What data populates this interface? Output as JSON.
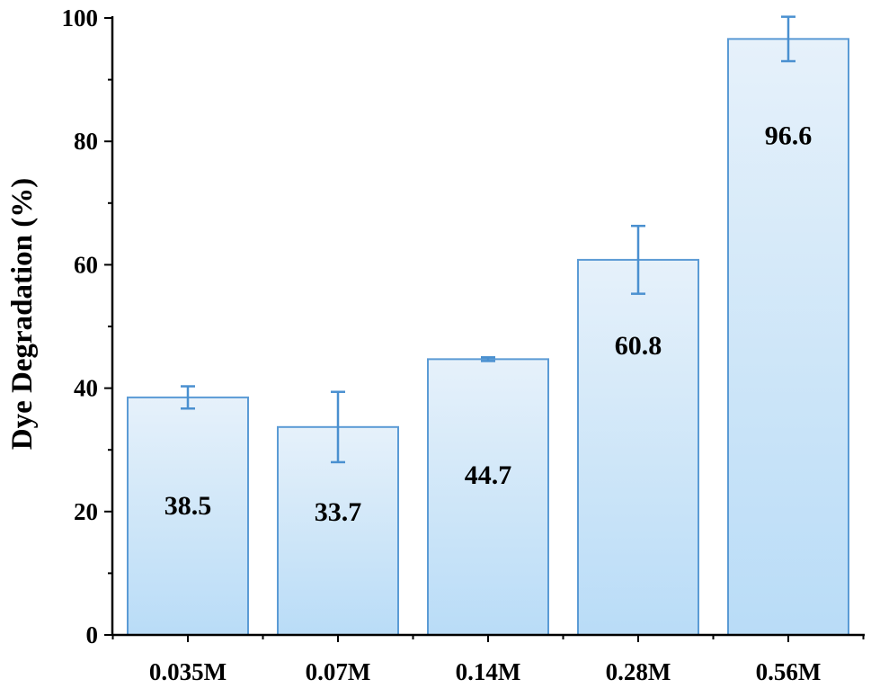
{
  "chart_data": {
    "type": "bar",
    "ylabel": "Dye Degradation (%)",
    "xlabel": "",
    "ylim": [
      0,
      100
    ],
    "yticks": [
      0,
      20,
      40,
      60,
      80,
      100
    ],
    "grid": false,
    "categories": [
      "0.035M",
      "0.07M",
      "0.14M",
      "0.28M",
      "0.56M"
    ],
    "values": [
      38.5,
      33.7,
      44.7,
      60.8,
      96.6
    ],
    "data_labels": [
      "38.5",
      "33.7",
      "44.7",
      "60.8",
      "96.6"
    ],
    "errors": [
      1.8,
      5.7,
      0.3,
      5.5,
      3.6
    ],
    "colors": {
      "bar_top": "#e6f1fa",
      "bar_bottom": "#b9dcf7",
      "bar_edge": "#5b9bd5",
      "error_bar": "#4a90d0",
      "axis": "#000000"
    }
  }
}
